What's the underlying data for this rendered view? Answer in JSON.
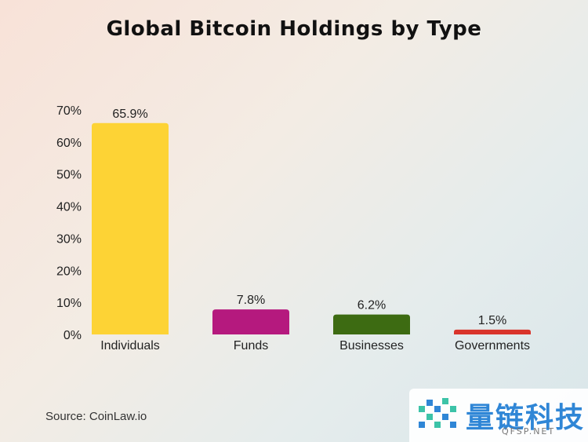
{
  "chart_data": {
    "type": "bar",
    "title": "Global Bitcoin Holdings by Type",
    "categories": [
      "Individuals",
      "Funds",
      "Businesses",
      "Governments"
    ],
    "values": [
      65.9,
      7.8,
      6.2,
      1.5
    ],
    "data_labels": [
      "65.9%",
      "7.8%",
      "6.2%",
      "1.5%"
    ],
    "colors": [
      "#fdd335",
      "#b5197e",
      "#3d6b12",
      "#d9342b"
    ],
    "ylim": [
      0,
      70
    ],
    "yticks": [
      "0%",
      "10%",
      "20%",
      "30%",
      "40%",
      "50%",
      "60%",
      "70%"
    ],
    "grid": false,
    "legend": "none",
    "xlabel": "",
    "ylabel": ""
  },
  "source": "Source: CoinLaw.io",
  "watermark": {
    "text": "量链科技",
    "sub": "QFSP.NET",
    "icon": "pixel-logo-icon",
    "colors": [
      "#2f86d6",
      "#3cc3a8"
    ]
  }
}
